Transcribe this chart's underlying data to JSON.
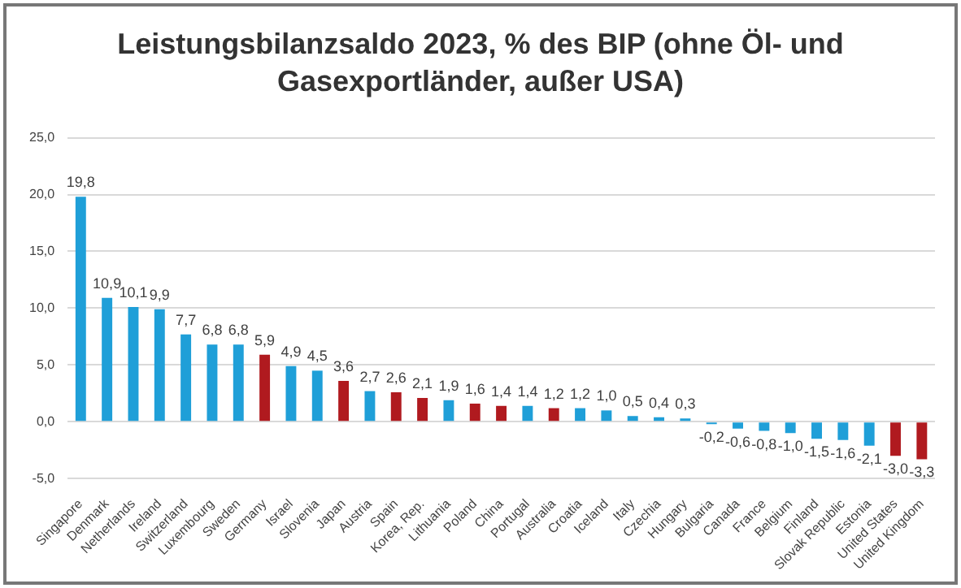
{
  "chart_data": {
    "type": "bar",
    "title": "Leistungsbilanzsaldo 2023, % des BIP (ohne Öl- und Gasexportländer, außer USA)",
    "categories": [
      "Singapore",
      "Denmark",
      "Netherlands",
      "Ireland",
      "Switzerland",
      "Luxembourg",
      "Sweden",
      "Germany",
      "Israel",
      "Slovenia",
      "Japan",
      "Austria",
      "Spain",
      "Korea, Rep.",
      "Lithuania",
      "Poland",
      "China",
      "Portugal",
      "Australia",
      "Croatia",
      "Iceland",
      "Italy",
      "Czechia",
      "Hungary",
      "Bulgaria",
      "Canada",
      "France",
      "Belgium",
      "Finland",
      "Slovak Republic",
      "Estonia",
      "United States",
      "United Kingdom"
    ],
    "values": [
      19.8,
      10.9,
      10.1,
      9.9,
      7.7,
      6.8,
      6.8,
      5.9,
      4.9,
      4.5,
      3.6,
      2.7,
      2.6,
      2.1,
      1.9,
      1.6,
      1.4,
      1.4,
      1.2,
      1.2,
      1.0,
      0.5,
      0.4,
      0.3,
      -0.2,
      -0.6,
      -0.8,
      -1.0,
      -1.5,
      -1.6,
      -2.1,
      -3.0,
      -3.3
    ],
    "value_labels": [
      "19,8",
      "10,9",
      "10,1",
      "9,9",
      "7,7",
      "6,8",
      "6,8",
      "5,9",
      "4,9",
      "4,5",
      "3,6",
      "2,7",
      "2,6",
      "2,1",
      "1,9",
      "1,6",
      "1,4",
      "1,4",
      "1,2",
      "1,2",
      "1,0",
      "0,5",
      "0,4",
      "0,3",
      "-0,2",
      "-0,6",
      "-0,8",
      "-1,0",
      "-1,5",
      "-1,6",
      "-2,1",
      "-3,0",
      "-3,3"
    ],
    "colors": [
      "#1f9fd8",
      "#1f9fd8",
      "#1f9fd8",
      "#1f9fd8",
      "#1f9fd8",
      "#1f9fd8",
      "#1f9fd8",
      "#b01a1f",
      "#1f9fd8",
      "#1f9fd8",
      "#b01a1f",
      "#1f9fd8",
      "#b01a1f",
      "#b01a1f",
      "#1f9fd8",
      "#b01a1f",
      "#b01a1f",
      "#1f9fd8",
      "#b01a1f",
      "#1f9fd8",
      "#1f9fd8",
      "#1f9fd8",
      "#1f9fd8",
      "#1f9fd8",
      "#1f9fd8",
      "#1f9fd8",
      "#1f9fd8",
      "#1f9fd8",
      "#1f9fd8",
      "#1f9fd8",
      "#1f9fd8",
      "#b01a1f",
      "#b01a1f"
    ],
    "ylim": [
      -5,
      25
    ],
    "yticks": [
      {
        "value": -5,
        "label": "-5,0"
      },
      {
        "value": 0,
        "label": "0,0"
      },
      {
        "value": 5,
        "label": "5,0"
      },
      {
        "value": 10,
        "label": "10,0"
      },
      {
        "value": 15,
        "label": "15,0"
      },
      {
        "value": 20,
        "label": "20,0"
      },
      {
        "value": 25,
        "label": "25,0"
      }
    ],
    "grid": "y",
    "legend": false
  }
}
